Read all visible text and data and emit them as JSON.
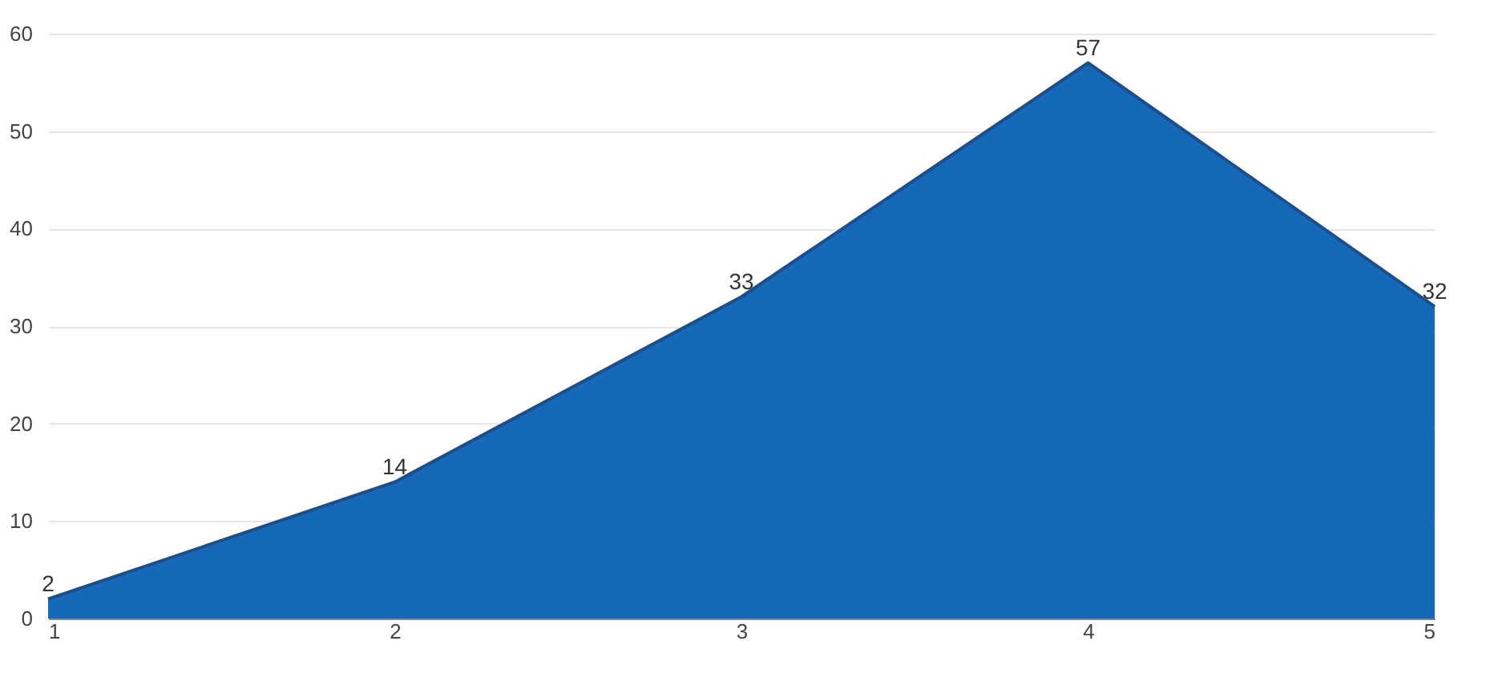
{
  "chart_data": {
    "type": "area",
    "x": [
      1,
      2,
      3,
      4,
      5
    ],
    "series": [
      {
        "color": "#1668b8",
        "values": [
          2,
          14,
          33,
          57,
          32
        ]
      }
    ],
    "xlim": [
      1,
      5
    ],
    "xticks": [
      1,
      2,
      3,
      4,
      5
    ],
    "ylim": [
      0,
      60
    ],
    "yticks": [
      0,
      10,
      20,
      30,
      40,
      50,
      60
    ],
    "grid": "y",
    "data_labels": true
  }
}
